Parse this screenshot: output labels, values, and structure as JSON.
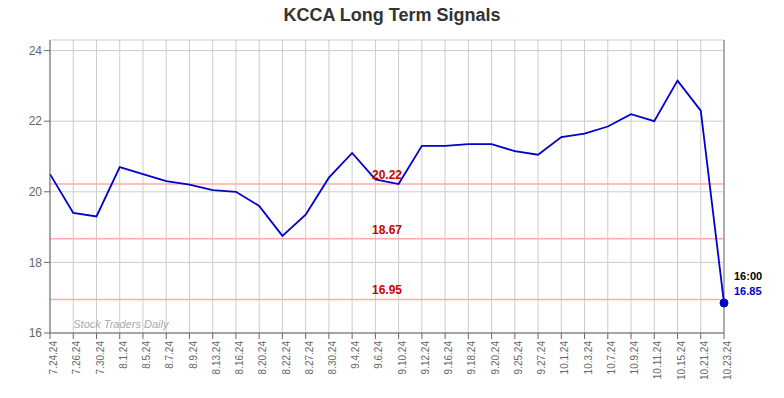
{
  "chart_data": {
    "type": "line",
    "title": "KCCA Long Term Signals",
    "color": "#0000cc",
    "categories": [
      "7.24.24",
      "7.26.24",
      "7.30.24",
      "8.1.24",
      "8.5.24",
      "8.7.24",
      "8.9.24",
      "8.13.24",
      "8.16.24",
      "8.20.24",
      "8.22.24",
      "8.27.24",
      "8.30.24",
      "9.4.24",
      "9.6.24",
      "9.10.24",
      "9.12.24",
      "9.16.24",
      "9.18.24",
      "9.20.24",
      "9.25.24",
      "9.27.24",
      "10.1.24",
      "10.3.24",
      "10.7.24",
      "10.9.24",
      "10.11.24",
      "10.15.24",
      "10.21.24",
      "10.23.24"
    ],
    "values": [
      20.5,
      19.4,
      19.3,
      20.7,
      20.5,
      20.3,
      20.2,
      20.05,
      20.0,
      19.6,
      18.75,
      19.35,
      20.4,
      21.1,
      20.35,
      20.22,
      21.3,
      21.3,
      21.35,
      21.35,
      21.15,
      21.05,
      21.55,
      21.65,
      21.85,
      22.2,
      22.0,
      23.15,
      22.3,
      16.85
    ],
    "ylim": [
      16,
      24.3
    ],
    "yticks": [
      16,
      18,
      20,
      22,
      24
    ],
    "grid": true,
    "hlines": [
      {
        "y": 20.22,
        "label": "20.22",
        "color": "#ffaaaa",
        "label_color": "#cc0000"
      },
      {
        "y": 18.67,
        "label": "18.67",
        "color": "#ffaaaa",
        "label_color": "#cc0000"
      },
      {
        "y": 16.95,
        "label": "16.95",
        "color": "#ffaaaa",
        "label_color": "#cc0000"
      }
    ],
    "vline": {
      "x": "10.23.24",
      "color": "#888888"
    },
    "annotations": [
      {
        "text": "16:00",
        "color": "#000000"
      },
      {
        "text": "16.85",
        "color": "#0000cc"
      },
      {
        "text": "Stock Traders Daily",
        "color": "#aaaaaa"
      }
    ]
  }
}
